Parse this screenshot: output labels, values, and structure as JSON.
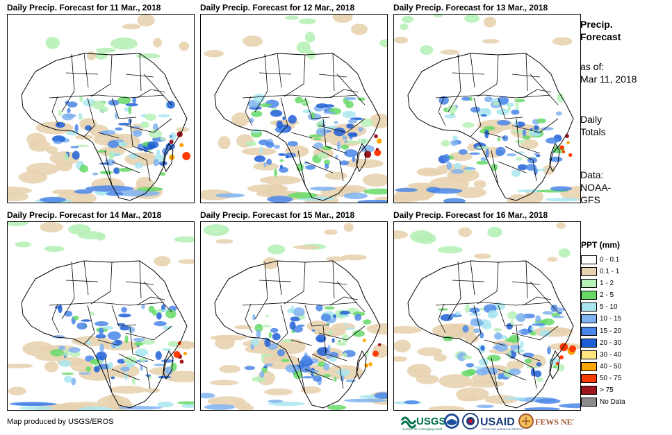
{
  "panels": [
    {
      "title": "Daily Precip. Forecast for 11 Mar., 2018"
    },
    {
      "title": "Daily Precip. Forecast for 12 Mar., 2018"
    },
    {
      "title": "Daily Precip. Forecast for 13 Mar., 2018"
    },
    {
      "title": "Daily Precip. Forecast for 14 Mar., 2018"
    },
    {
      "title": "Daily Precip. Forecast for 15 Mar., 2018"
    },
    {
      "title": "Daily Precip. Forecast for 16 Mar., 2018"
    }
  ],
  "sidebar": {
    "title_line1": "Precip.",
    "title_line2": "Forecast",
    "asof_label": "as of:",
    "asof_date": "Mar 11, 2018",
    "totals_line1": "Daily",
    "totals_line2": "Totals",
    "data_line1": "Data:",
    "data_line2": "NOAA-",
    "data_line3": "GFS"
  },
  "legend": {
    "title": "PPT (mm)",
    "items": [
      {
        "label": "0 - 0.1",
        "color": "#ffffff"
      },
      {
        "label": "0.1 - 1",
        "color": "#e8d3b0"
      },
      {
        "label": "1 - 2",
        "color": "#b6f0b6"
      },
      {
        "label": "2 - 5",
        "color": "#66d966"
      },
      {
        "label": "5 - 10",
        "color": "#a8e6f0"
      },
      {
        "label": "10 - 15",
        "color": "#7fb2f0"
      },
      {
        "label": "15 - 20",
        "color": "#4a86e8"
      },
      {
        "label": "20 - 30",
        "color": "#1f5fd6"
      },
      {
        "label": "30 - 40",
        "color": "#ffe680"
      },
      {
        "label": "40 - 50",
        "color": "#ffa500"
      },
      {
        "label": "50 - 75",
        "color": "#ff3b00"
      },
      {
        "label": "> 75",
        "color": "#a0141e"
      },
      {
        "label": "No Data",
        "color": "#8c8c8c"
      }
    ]
  },
  "footer": {
    "credit": "Map produced by USGS/EROS",
    "logo_usgs": "USGS",
    "logo_usgs_tagline": "science for a changing world",
    "logo_usaid": "USAID",
    "logo_usaid_tagline": "FROM THE AMERICAN PEOPLE",
    "logo_fewsnet": "FEWS NET"
  }
}
